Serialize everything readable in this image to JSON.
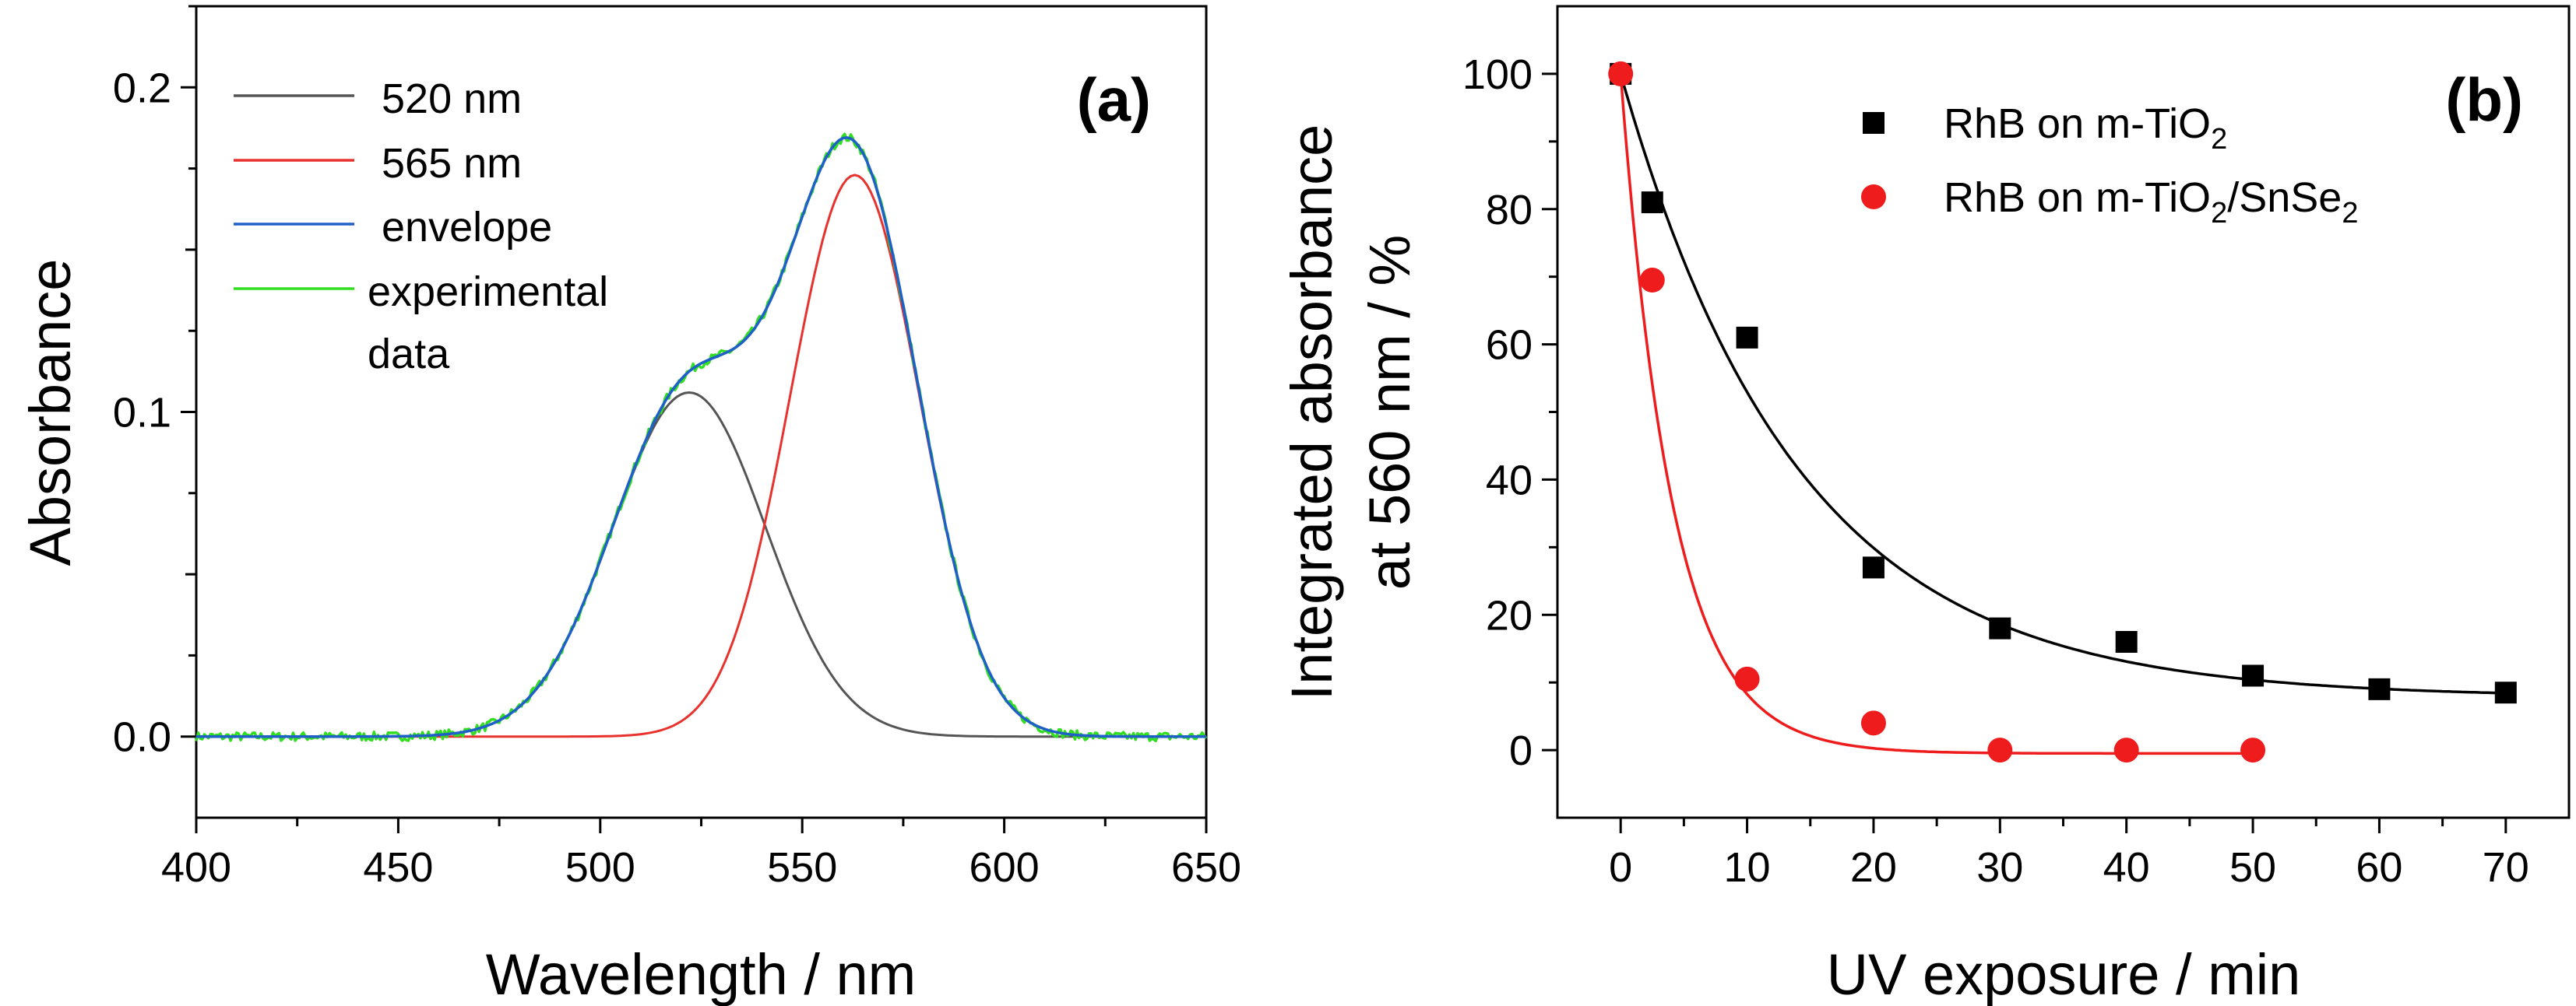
{
  "chart_data": [
    {
      "type": "line",
      "panel_label": "(a)",
      "xlabel": "Wavelength / nm",
      "ylabel": "Absorbance",
      "xlim": [
        400,
        650
      ],
      "ylim": [
        -0.025,
        0.225
      ],
      "x_ticks": [
        "400",
        "450",
        "500",
        "550",
        "600",
        "650"
      ],
      "y_ticks": [
        "0.0",
        "0.1",
        "0.2"
      ],
      "legend_position": "top-left",
      "series": [
        {
          "name": "520 nm",
          "color": "#555555",
          "model": "gaussian",
          "center": 522,
          "amplitude": 0.106,
          "sigma": 19
        },
        {
          "name": "565 nm",
          "color": "#e8322e",
          "model": "gaussian",
          "center": 563,
          "amplitude": 0.173,
          "sigma": 16
        },
        {
          "name": "envelope",
          "color": "#1f5fc8",
          "model": "sum of 520 nm and 565 nm components"
        },
        {
          "name": "experimental data",
          "color": "#33dd22",
          "model": "envelope with measurement noise"
        }
      ]
    },
    {
      "type": "scatter",
      "panel_label": "(b)",
      "xlabel": "UV exposure / min",
      "ylabel_line1": "Integrated absorbance",
      "ylabel_line2": "at 560 nm / %",
      "xlim": [
        -5,
        75
      ],
      "ylim": [
        -10,
        110
      ],
      "x_ticks": [
        "0",
        "10",
        "20",
        "30",
        "40",
        "50",
        "60",
        "70"
      ],
      "y_ticks": [
        "0",
        "20",
        "40",
        "60",
        "80",
        "100"
      ],
      "legend_position": "top-right",
      "series": [
        {
          "name_main": "RhB on m-TiO",
          "name_sub": "2",
          "name_rest": "",
          "name_sub2": "",
          "marker": "square",
          "color": "#000000",
          "x": [
            0,
            2.5,
            10,
            20,
            30,
            40,
            50,
            60,
            70
          ],
          "y": [
            100,
            81,
            61,
            27,
            18,
            16,
            11,
            9,
            8.5
          ],
          "fit": {
            "type": "exponential decay",
            "y0": 7.8,
            "A": 92.2,
            "tau": 14,
            "x_end": 70
          }
        },
        {
          "name_main": "RhB on m-TiO",
          "name_sub": "2",
          "name_rest": "/SnSe",
          "name_sub2": "2",
          "marker": "circle",
          "color": "#ee1c1c",
          "x": [
            0,
            2.5,
            10,
            20,
            30,
            40,
            50
          ],
          "y": [
            100,
            69.5,
            10.5,
            4,
            0,
            0,
            0
          ],
          "fit": {
            "type": "exponential decay",
            "y0": -0.5,
            "A": 100.5,
            "tau": 4.1,
            "x_end": 50
          }
        }
      ]
    }
  ]
}
